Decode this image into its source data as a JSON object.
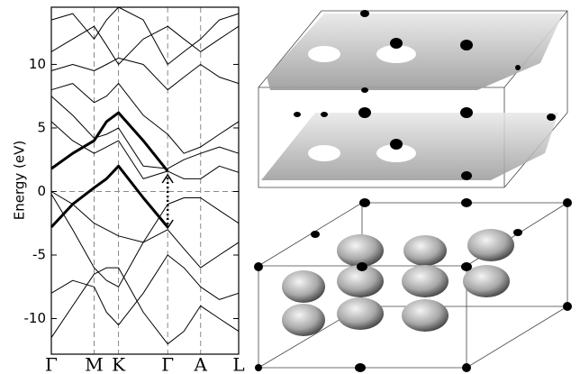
{
  "chart_data": {
    "type": "line",
    "y_label": "Energy (eV)",
    "xlim": [
      0,
      4.38
    ],
    "xticks": [
      {
        "value": 0,
        "label": "Γ"
      },
      {
        "value": 1,
        "label": "M"
      },
      {
        "value": 1.57,
        "label": "K"
      },
      {
        "value": 2.72,
        "label": "Γ"
      },
      {
        "value": 3.49,
        "label": "A"
      },
      {
        "value": 4.38,
        "label": "L"
      }
    ],
    "ylim": [
      -12.8,
      14.5
    ],
    "yticks": [
      -10,
      -5,
      0,
      5,
      10
    ],
    "hline": 0,
    "x": [
      0,
      0.5,
      1,
      1.29,
      1.57,
      2.15,
      2.72,
      3.1,
      3.49,
      3.93,
      4.38
    ],
    "series": [
      {
        "color": "#000000",
        "width": 1,
        "values": [
          -11.5,
          -9,
          -6.5,
          -6,
          -6,
          -9.5,
          -12,
          -11,
          -9,
          -10,
          -11
        ]
      },
      {
        "color": "#000000",
        "width": 1,
        "values": [
          -8,
          -7,
          -7.5,
          -9.5,
          -10.5,
          -8,
          -5,
          -6,
          -7.5,
          -8.5,
          -8
        ]
      },
      {
        "color": "#000000",
        "width": 1,
        "values": [
          -0.2,
          -3,
          -6,
          -7,
          -7.5,
          -4,
          -3,
          -4.5,
          -6,
          -5,
          -4
        ]
      },
      {
        "color": "#000000",
        "width": 1,
        "values": [
          0,
          -1,
          -2.5,
          -3,
          -3.5,
          -4,
          -1,
          -0.5,
          -0.5,
          -1.5,
          -2.5
        ]
      },
      {
        "color": "#000000",
        "width": 1,
        "values": [
          5.5,
          4,
          3,
          3.5,
          4,
          1,
          1.6,
          1,
          1,
          2,
          1.5
        ]
      },
      {
        "color": "#000000",
        "width": 1,
        "values": [
          7.5,
          6,
          4.2,
          4.5,
          5,
          2,
          1.8,
          2.5,
          3,
          3.5,
          3
        ]
      },
      {
        "color": "#000000",
        "width": 1,
        "values": [
          8,
          8.5,
          7,
          7.5,
          8.5,
          6,
          4.5,
          3,
          3.5,
          4.5,
          5.5
        ]
      },
      {
        "color": "#000000",
        "width": 1,
        "values": [
          9.5,
          10,
          9.5,
          10,
          10.5,
          10,
          8,
          9,
          10,
          9,
          8.5
        ]
      },
      {
        "color": "#000000",
        "width": 1,
        "values": [
          11,
          12,
          13,
          11.5,
          10,
          12,
          13,
          12,
          11,
          12,
          13
        ]
      },
      {
        "color": "#000000",
        "width": 1,
        "values": [
          13.5,
          14,
          12,
          13.5,
          14.5,
          13.5,
          10,
          11,
          12,
          13.5,
          14
        ]
      },
      {
        "color": "#000000",
        "width": 3,
        "values": [
          1.8,
          3,
          4,
          5.5,
          6.2,
          4,
          1.6,
          null,
          null,
          null,
          null
        ]
      },
      {
        "color": "#000000",
        "width": 3,
        "values": [
          -2.8,
          -1,
          0.3,
          1,
          2,
          -0.5,
          -2.8,
          null,
          null,
          null,
          null
        ]
      }
    ]
  }
}
